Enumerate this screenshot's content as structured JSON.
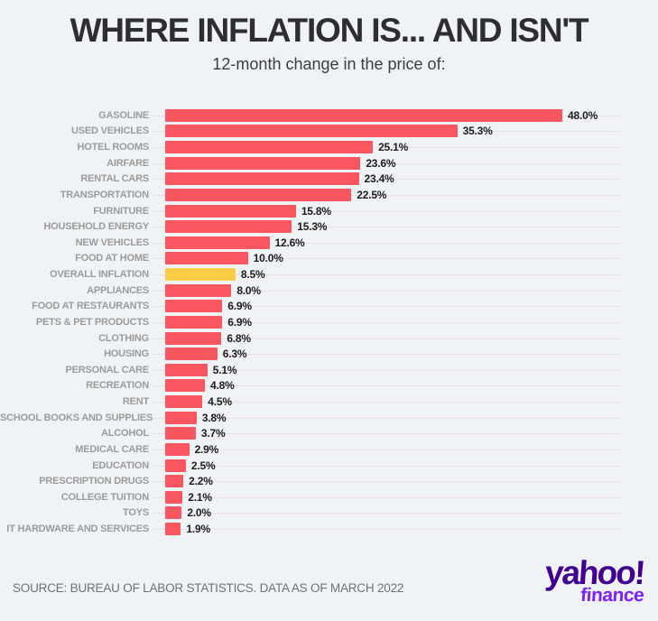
{
  "header": {
    "title": "WHERE INFLATION IS... AND ISN'T",
    "subtitle": "12-month change in the price of:"
  },
  "chart_data": {
    "type": "bar",
    "orientation": "horizontal",
    "unit": "percent",
    "xlim": [
      0,
      50
    ],
    "grid": "faint horizontal line per row",
    "legend": "none",
    "highlight_category": "OVERALL INFLATION",
    "colors": {
      "bar": "#f9565f",
      "highlight": "#fbcc45"
    },
    "categories": [
      "GASOLINE",
      "USED VEHICLES",
      "HOTEL ROOMS",
      "AIRFARE",
      "RENTAL CARS",
      "TRANSPORTATION",
      "FURNITURE",
      "HOUSEHOLD ENERGY",
      "NEW VEHICLES",
      "FOOD AT HOME",
      "OVERALL INFLATION",
      "APPLIANCES",
      "FOOD AT RESTAURANTS",
      "PETS & PET PRODUCTS",
      "CLOTHING",
      "HOUSING",
      "PERSONAL CARE",
      "RECREATION",
      "RENT",
      "SCHOOL BOOKS AND SUPPLIES",
      "ALCOHOL",
      "MEDICAL CARE",
      "EDUCATION",
      "PRESCRIPTION DRUGS",
      "COLLEGE TUITION",
      "TOYS",
      "IT HARDWARE AND SERVICES"
    ],
    "values": [
      48.0,
      35.3,
      25.1,
      23.6,
      23.4,
      22.5,
      15.8,
      15.3,
      12.6,
      10.0,
      8.5,
      8.0,
      6.9,
      6.9,
      6.8,
      6.3,
      5.1,
      4.8,
      4.5,
      3.8,
      3.7,
      2.9,
      2.5,
      2.2,
      2.1,
      2.0,
      1.9
    ],
    "value_labels": [
      "48.0%",
      "35.3%",
      "25.1%",
      "23.6%",
      "23.4%",
      "22.5%",
      "15.8%",
      "15.3%",
      "12.6%",
      "10.0%",
      "8.5%",
      "8.0%",
      "6.9%",
      "6.9%",
      "6.8%",
      "6.3%",
      "5.1%",
      "4.8%",
      "4.5%",
      "3.8%",
      "3.7%",
      "2.9%",
      "2.5%",
      "2.2%",
      "2.1%",
      "2.0%",
      "1.9%"
    ]
  },
  "footer": {
    "source": "SOURCE: BUREAU OF LABOR STATISTICS. DATA AS OF MARCH 2022",
    "logo": {
      "brand": "yahoo!",
      "sub": "finance",
      "brand_color": "#410093",
      "sub_color": "#7e1fff"
    }
  }
}
